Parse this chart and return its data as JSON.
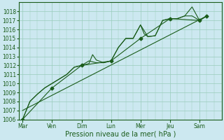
{
  "xlabel": "Pression niveau de la mer( hPa )",
  "bg_color": "#cce8f0",
  "grid_color": "#99ccbb",
  "line_color": "#1a5c1a",
  "ylim": [
    1006,
    1019
  ],
  "yticks": [
    1006,
    1007,
    1008,
    1009,
    1010,
    1011,
    1012,
    1013,
    1014,
    1015,
    1016,
    1017,
    1018
  ],
  "day_labels": [
    "Mar",
    "Ven",
    "Dim",
    "Lun",
    "Mer",
    "Jeu",
    "Sam"
  ],
  "day_positions": [
    0,
    16,
    32,
    48,
    64,
    80,
    96
  ],
  "xlim": [
    -2,
    108
  ],
  "series1_x": [
    0,
    4,
    8,
    12,
    16,
    20,
    24,
    28,
    32,
    36,
    38,
    40,
    44,
    48,
    52,
    56,
    60,
    64,
    66,
    68,
    72,
    76,
    80,
    84,
    88,
    92,
    96,
    100
  ],
  "series1_y": [
    1006,
    1008,
    1008.8,
    1009.5,
    1010,
    1010.5,
    1011,
    1011.8,
    1012,
    1012.2,
    1013.2,
    1012.6,
    1012.3,
    1012.5,
    1014,
    1015,
    1015,
    1016.5,
    1015.5,
    1015.2,
    1015.3,
    1017,
    1017.2,
    1017.2,
    1017.5,
    1018.5,
    1017,
    1017.5
  ],
  "series2_x": [
    0,
    4,
    8,
    12,
    16,
    20,
    24,
    28,
    32,
    36,
    40,
    44,
    48,
    52,
    56,
    60,
    64,
    68,
    72,
    76,
    80,
    84,
    88,
    92,
    96,
    100
  ],
  "series2_y": [
    1006,
    1008,
    1008.8,
    1009.5,
    1010,
    1010.5,
    1011,
    1011.8,
    1012,
    1012.5,
    1012.3,
    1012.3,
    1012.5,
    1014,
    1015,
    1015,
    1016.5,
    1015.2,
    1015.3,
    1017,
    1017.2,
    1017.2,
    1017.5,
    1017.5,
    1017,
    1017.5
  ],
  "series3_x": [
    0,
    16,
    32,
    48,
    64,
    80,
    96,
    100
  ],
  "series3_y": [
    1006,
    1009.5,
    1012,
    1012.5,
    1015,
    1017.2,
    1017,
    1017.5
  ],
  "trend_x": [
    0,
    100
  ],
  "trend_y": [
    1007,
    1017.5
  ]
}
